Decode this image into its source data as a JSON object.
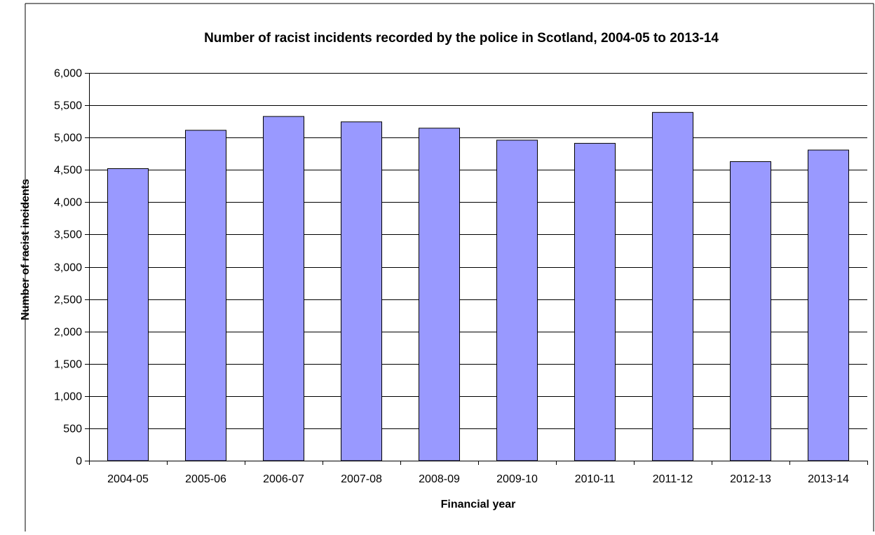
{
  "chart_data": {
    "type": "bar",
    "title": "Number of racist incidents recorded by the police in Scotland, 2004-05 to 2013-14",
    "xlabel": "Financial year",
    "ylabel": "Number of racist incidents",
    "categories": [
      "2004-05",
      "2005-06",
      "2006-07",
      "2007-08",
      "2008-09",
      "2009-10",
      "2010-11",
      "2011-12",
      "2012-13",
      "2013-14"
    ],
    "values": [
      4519,
      5113,
      5326,
      5243,
      5145,
      4960,
      4911,
      5389,
      4628,
      4807
    ],
    "ylim": [
      0,
      6000
    ],
    "yticks": [
      0,
      500,
      1000,
      1500,
      2000,
      2500,
      3000,
      3500,
      4000,
      4500,
      5000,
      5500,
      6000
    ],
    "ytick_labels": [
      "0",
      "500",
      "1,000",
      "1,500",
      "2,000",
      "2,500",
      "3,000",
      "3,500",
      "4,000",
      "4,500",
      "5,000",
      "5,500",
      "6,000"
    ],
    "grid": true,
    "legend": "none",
    "bar_color": "#9999ff",
    "bar_edge_color": "#000000",
    "gridline_color": "#000000"
  }
}
